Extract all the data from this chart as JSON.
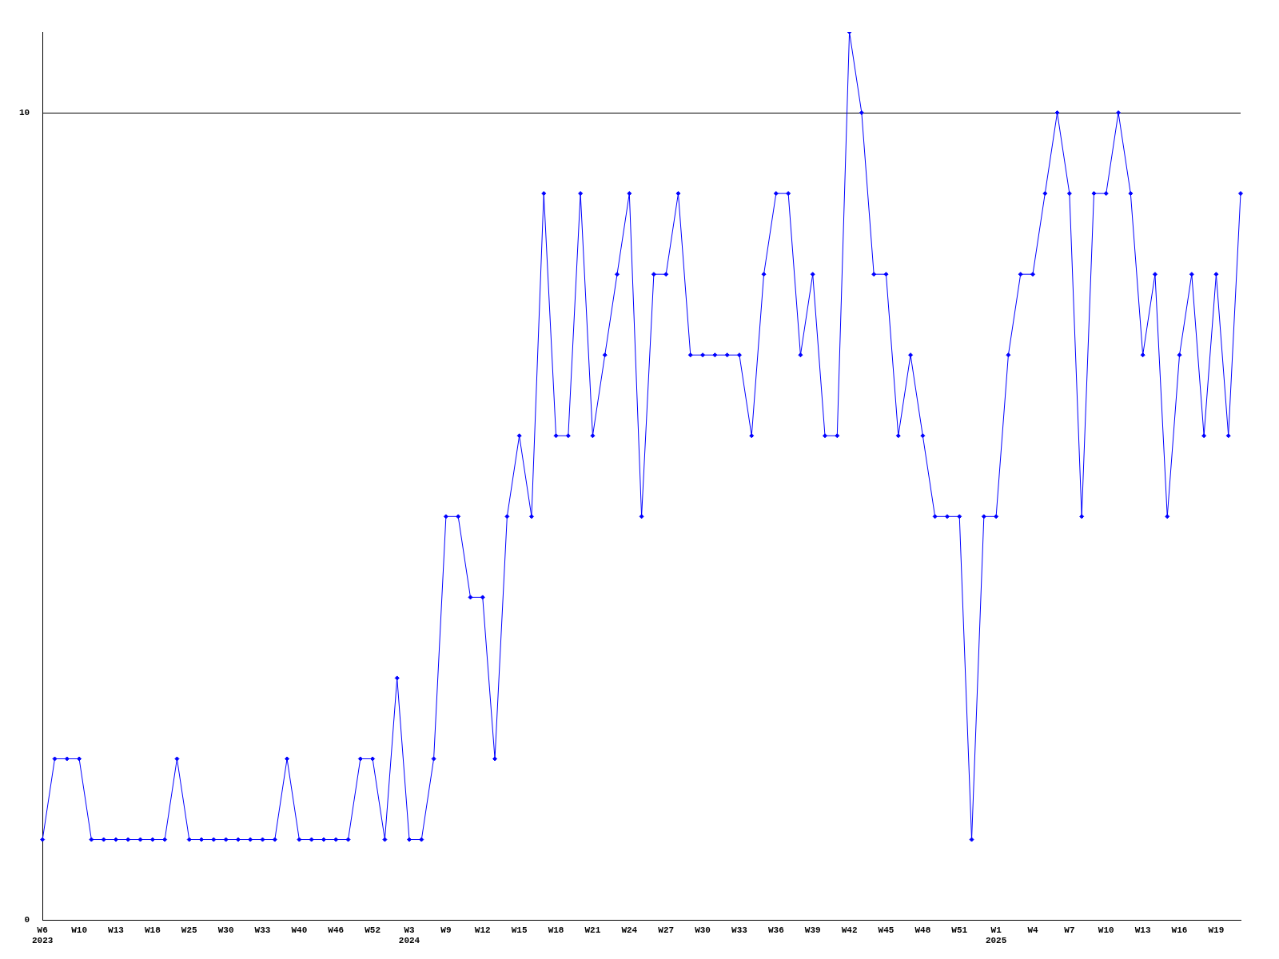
{
  "chart_data": {
    "type": "line",
    "categories": [
      "W6\n2023",
      null,
      null,
      "W10",
      null,
      null,
      "W13",
      null,
      null,
      "W18",
      null,
      null,
      "W25",
      null,
      null,
      "W30",
      null,
      null,
      "W33",
      null,
      null,
      "W40",
      null,
      null,
      "W46",
      null,
      null,
      "W52",
      null,
      null,
      "W3\n2024",
      null,
      null,
      "W9",
      null,
      null,
      "W12",
      null,
      null,
      "W15",
      null,
      null,
      "W18",
      null,
      null,
      "W21",
      null,
      null,
      "W24",
      null,
      null,
      "W27",
      null,
      null,
      "W30",
      null,
      null,
      "W33",
      null,
      null,
      "W36",
      null,
      null,
      "W39",
      null,
      null,
      "W42",
      null,
      null,
      "W45",
      null,
      null,
      "W48",
      null,
      null,
      "W51",
      null,
      null,
      "W1\n2025",
      null,
      null,
      "W4",
      null,
      null,
      "W7",
      null,
      null,
      "W10",
      null,
      null,
      "W13",
      null,
      null,
      "W16",
      null,
      null,
      "W19",
      null,
      null
    ],
    "series": [
      {
        "color": "#0000ff",
        "values": [
          1,
          2,
          2,
          2,
          1,
          1,
          1,
          1,
          1,
          1,
          1,
          2,
          1,
          1,
          1,
          1,
          1,
          1,
          1,
          1,
          2,
          1,
          1,
          1,
          1,
          1,
          2,
          2,
          1,
          3,
          1,
          1,
          2,
          5,
          5,
          4,
          4,
          2,
          5,
          6,
          5,
          9,
          6,
          6,
          9,
          6,
          7,
          8,
          9,
          5,
          8,
          8,
          9,
          7,
          7,
          7,
          7,
          7,
          6,
          8,
          9,
          9,
          7,
          8,
          6,
          6,
          11,
          10,
          8,
          8,
          6,
          7,
          6,
          5,
          5,
          5,
          1,
          5,
          5,
          7,
          8,
          8,
          9,
          10,
          9,
          5,
          9,
          9,
          10,
          9,
          7,
          8,
          5,
          7,
          8,
          6,
          8,
          6,
          9
        ]
      }
    ],
    "ylim": [
      0,
      11
    ],
    "yticks": [
      0,
      10
    ],
    "grid": "y",
    "marker": "diamond",
    "line_style": "solid"
  }
}
